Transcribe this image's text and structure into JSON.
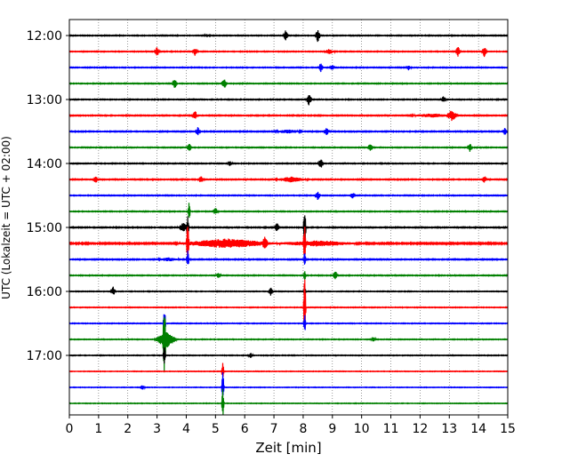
{
  "chart_data": {
    "type": "line",
    "xlabel": "Zeit  [min]",
    "ylabel": "UTC (Lokalzeit = UTC + 02:00)",
    "xlim": [
      0,
      15
    ],
    "x_ticks": [
      0,
      1,
      2,
      3,
      4,
      5,
      6,
      7,
      8,
      9,
      10,
      11,
      12,
      13,
      14,
      15
    ],
    "row_interval_min": 15,
    "row_start": "12:00",
    "row_end": "17:45",
    "y_tick_labels": [
      "12:00",
      "13:00",
      "14:00",
      "15:00",
      "16:00",
      "17:00"
    ],
    "grid": "vertical-dotted",
    "color_cycle": [
      "#000000",
      "#ff0000",
      "#0000ff",
      "#008000"
    ],
    "rows": [
      {
        "time": "12:00",
        "color": "#000000",
        "noise": 0.35,
        "events": [
          {
            "x": 7.4,
            "amp": 6,
            "dur": 0.1
          },
          {
            "x": 8.5,
            "amp": 7,
            "dur": 0.1
          },
          {
            "x": 4.7,
            "amp": 2,
            "dur": 0.1
          }
        ]
      },
      {
        "time": "12:15",
        "color": "#ff0000",
        "noise": 0.35,
        "events": [
          {
            "x": 3.0,
            "amp": 5,
            "dur": 0.1
          },
          {
            "x": 4.3,
            "amp": 5,
            "dur": 0.1
          },
          {
            "x": 8.9,
            "amp": 3,
            "dur": 0.2
          },
          {
            "x": 13.3,
            "amp": 6,
            "dur": 0.1
          },
          {
            "x": 14.2,
            "amp": 6,
            "dur": 0.1
          }
        ]
      },
      {
        "time": "12:30",
        "color": "#0000ff",
        "noise": 0.35,
        "events": [
          {
            "x": 8.6,
            "amp": 5,
            "dur": 0.1
          },
          {
            "x": 9.0,
            "amp": 3,
            "dur": 0.1
          },
          {
            "x": 11.6,
            "amp": 3,
            "dur": 0.1
          }
        ]
      },
      {
        "time": "12:45",
        "color": "#008000",
        "noise": 0.35,
        "events": [
          {
            "x": 3.6,
            "amp": 6,
            "dur": 0.1
          },
          {
            "x": 5.3,
            "amp": 6,
            "dur": 0.1
          }
        ]
      },
      {
        "time": "13:00",
        "color": "#000000",
        "noise": 0.35,
        "events": [
          {
            "x": 8.2,
            "amp": 7,
            "dur": 0.1
          },
          {
            "x": 12.8,
            "amp": 4,
            "dur": 0.1
          }
        ]
      },
      {
        "time": "13:15",
        "color": "#ff0000",
        "noise": 0.4,
        "events": [
          {
            "x": 4.3,
            "amp": 5,
            "dur": 0.1
          },
          {
            "x": 13.1,
            "amp": 6,
            "dur": 0.2
          },
          {
            "x": 12.4,
            "amp": 2,
            "dur": 0.8
          }
        ]
      },
      {
        "time": "13:30",
        "color": "#0000ff",
        "noise": 0.4,
        "events": [
          {
            "x": 4.4,
            "amp": 5,
            "dur": 0.1
          },
          {
            "x": 8.8,
            "amp": 4,
            "dur": 0.1
          },
          {
            "x": 14.9,
            "amp": 4,
            "dur": 0.1
          },
          {
            "x": 7.5,
            "amp": 2,
            "dur": 0.5
          }
        ]
      },
      {
        "time": "13:45",
        "color": "#008000",
        "noise": 0.35,
        "events": [
          {
            "x": 4.1,
            "amp": 5,
            "dur": 0.1
          },
          {
            "x": 10.3,
            "amp": 5,
            "dur": 0.1
          },
          {
            "x": 13.7,
            "amp": 5,
            "dur": 0.1
          }
        ]
      },
      {
        "time": "14:00",
        "color": "#000000",
        "noise": 0.35,
        "events": [
          {
            "x": 8.6,
            "amp": 6,
            "dur": 0.1
          },
          {
            "x": 5.5,
            "amp": 3,
            "dur": 0.1
          }
        ]
      },
      {
        "time": "14:15",
        "color": "#ff0000",
        "noise": 0.4,
        "events": [
          {
            "x": 0.9,
            "amp": 4,
            "dur": 0.1
          },
          {
            "x": 4.5,
            "amp": 4,
            "dur": 0.1
          },
          {
            "x": 7.6,
            "amp": 3,
            "dur": 0.6
          },
          {
            "x": 14.2,
            "amp": 4,
            "dur": 0.1
          }
        ]
      },
      {
        "time": "14:30",
        "color": "#0000ff",
        "noise": 0.35,
        "events": [
          {
            "x": 8.5,
            "amp": 5,
            "dur": 0.1
          },
          {
            "x": 9.7,
            "amp": 4,
            "dur": 0.1
          }
        ]
      },
      {
        "time": "14:45",
        "color": "#008000",
        "noise": 0.35,
        "events": [
          {
            "x": 4.1,
            "amp": 12,
            "dur": 0.05
          },
          {
            "x": 5.0,
            "amp": 4,
            "dur": 0.1
          }
        ]
      },
      {
        "time": "15:00",
        "color": "#000000",
        "noise": 0.4,
        "events": [
          {
            "x": 4.05,
            "amp": 12,
            "dur": 0.05
          },
          {
            "x": 3.9,
            "amp": 5,
            "dur": 0.2
          },
          {
            "x": 7.1,
            "amp": 5,
            "dur": 0.1
          },
          {
            "x": 8.05,
            "amp": 30,
            "dur": 0.05
          }
        ]
      },
      {
        "time": "15:15",
        "color": "#ff0000",
        "noise": 0.6,
        "events": [
          {
            "x": 4.05,
            "amp": 30,
            "dur": 0.05
          },
          {
            "x": 8.05,
            "amp": 22,
            "dur": 0.05
          },
          {
            "x": 5.4,
            "amp": 5,
            "dur": 1.8
          },
          {
            "x": 8.5,
            "amp": 3,
            "dur": 1.5
          },
          {
            "x": 6.7,
            "amp": 8,
            "dur": 0.1
          }
        ]
      },
      {
        "time": "15:30",
        "color": "#0000ff",
        "noise": 0.4,
        "events": [
          {
            "x": 4.05,
            "amp": 12,
            "dur": 0.05
          },
          {
            "x": 8.05,
            "amp": 8,
            "dur": 0.05
          },
          {
            "x": 3.4,
            "amp": 2,
            "dur": 0.4
          }
        ]
      },
      {
        "time": "15:45",
        "color": "#008000",
        "noise": 0.35,
        "events": [
          {
            "x": 8.05,
            "amp": 8,
            "dur": 0.05
          },
          {
            "x": 9.1,
            "amp": 5,
            "dur": 0.1
          },
          {
            "x": 5.1,
            "amp": 3,
            "dur": 0.1
          }
        ]
      },
      {
        "time": "16:00",
        "color": "#000000",
        "noise": 0.3,
        "events": [
          {
            "x": 1.5,
            "amp": 5,
            "dur": 0.1
          },
          {
            "x": 6.9,
            "amp": 5,
            "dur": 0.1
          },
          {
            "x": 8.05,
            "amp": 8,
            "dur": 0.05
          }
        ]
      },
      {
        "time": "16:15",
        "color": "#ff0000",
        "noise": 0.3,
        "events": [
          {
            "x": 8.05,
            "amp": 40,
            "dur": 0.05
          }
        ]
      },
      {
        "time": "16:30",
        "color": "#0000ff",
        "noise": 0.3,
        "events": [
          {
            "x": 3.25,
            "amp": 22,
            "dur": 0.05
          },
          {
            "x": 8.05,
            "amp": 12,
            "dur": 0.05
          }
        ]
      },
      {
        "time": "16:45",
        "color": "#008000",
        "noise": 0.3,
        "events": [
          {
            "x": 3.25,
            "amp": 40,
            "dur": 0.05
          },
          {
            "x": 3.3,
            "amp": 10,
            "dur": 0.4
          },
          {
            "x": 10.4,
            "amp": 3,
            "dur": 0.1
          }
        ]
      },
      {
        "time": "17:00",
        "color": "#000000",
        "noise": 0.3,
        "events": [
          {
            "x": 3.25,
            "amp": 12,
            "dur": 0.05
          },
          {
            "x": 6.2,
            "amp": 3,
            "dur": 0.1
          }
        ]
      },
      {
        "time": "17:15",
        "color": "#ff0000",
        "noise": 0.25,
        "events": [
          {
            "x": 5.25,
            "amp": 10,
            "dur": 0.05
          }
        ]
      },
      {
        "time": "17:30",
        "color": "#0000ff",
        "noise": 0.25,
        "events": [
          {
            "x": 5.25,
            "amp": 18,
            "dur": 0.05
          },
          {
            "x": 2.5,
            "amp": 3,
            "dur": 0.1
          }
        ]
      },
      {
        "time": "17:45",
        "color": "#008000",
        "noise": 0.25,
        "events": [
          {
            "x": 5.25,
            "amp": 16,
            "dur": 0.05
          }
        ]
      }
    ]
  }
}
